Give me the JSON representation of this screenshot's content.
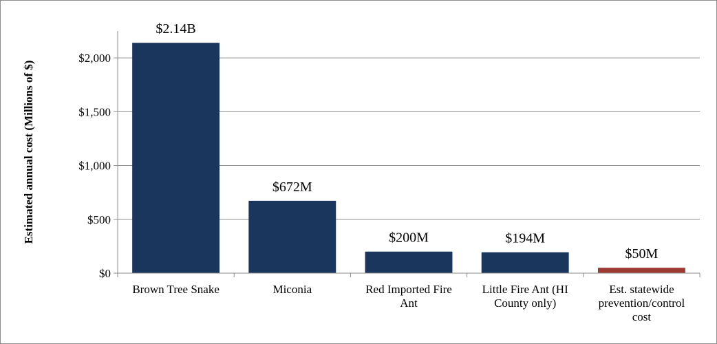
{
  "chart_data": {
    "type": "bar",
    "title": "",
    "xlabel": "",
    "ylabel": "Estimated annual cost (Millions of $)",
    "ylim": [
      0,
      2250
    ],
    "yticks": [
      0,
      500,
      1000,
      1500,
      2000
    ],
    "ytick_labels": [
      "$0",
      "$500",
      "$1,000",
      "$1,500",
      "$2,000"
    ],
    "grid": "horizontal",
    "categories": [
      [
        "Brown Tree Snake"
      ],
      [
        "Miconia"
      ],
      [
        "Red Imported Fire",
        "Ant"
      ],
      [
        "Little Fire Ant (HI",
        "County only)"
      ],
      [
        "Est. statewide",
        "prevention/control",
        "cost"
      ]
    ],
    "values": [
      2140,
      672,
      200,
      194,
      50
    ],
    "data_labels": [
      "$2.14B",
      "$672M",
      "$200M",
      "$194M",
      "$50M"
    ],
    "colors": [
      "#1b365d",
      "#1b365d",
      "#1b365d",
      "#1b365d",
      "#9c3b33"
    ]
  }
}
